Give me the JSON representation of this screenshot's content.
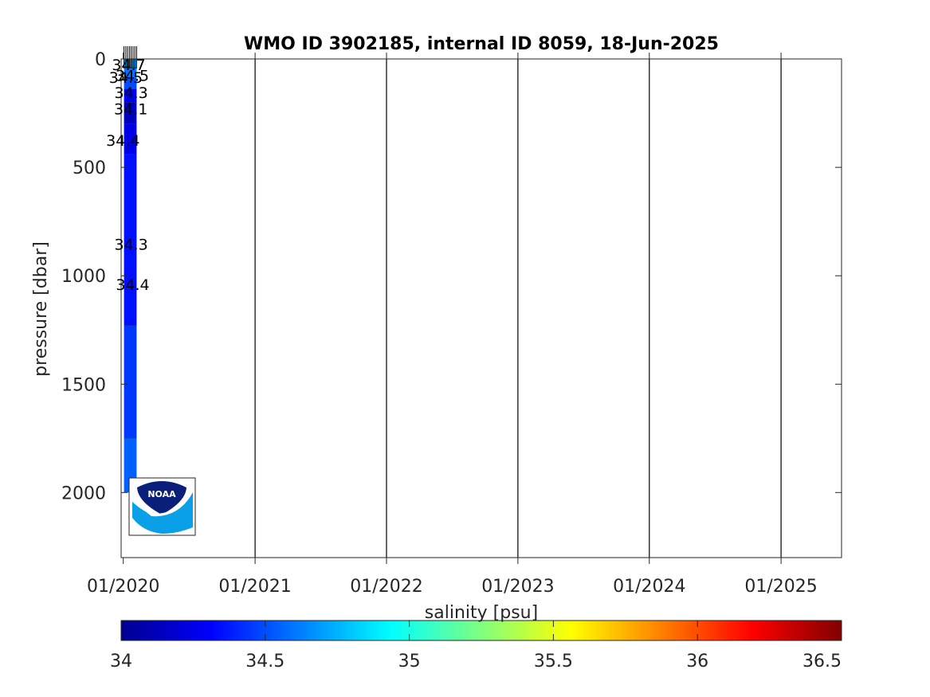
{
  "chart_data": {
    "type": "heatmap",
    "title": "WMO ID 3902185, internal ID 8059, 18-Jun-2025",
    "xlabel": "",
    "ylabel": "pressure [dbar]",
    "x_tick_labels": [
      "01/2020",
      "01/2021",
      "01/2022",
      "01/2023",
      "01/2024",
      "01/2025"
    ],
    "x_ticks": [
      "2020-01-01",
      "2021-01-01",
      "2022-01-01",
      "2023-01-01",
      "2024-01-01",
      "2025-01-01"
    ],
    "xlim": [
      "2019-12-26",
      "2025-06-18"
    ],
    "y_ticks": [
      0,
      500,
      1000,
      1500,
      2000
    ],
    "ylim": [
      0,
      2300
    ],
    "y_reversed": true,
    "grid": "vertical lines at yearly ticks",
    "profile_dates": [
      "2020-01-03",
      "2020-01-08",
      "2020-01-13",
      "2020-01-18",
      "2020-01-23",
      "2020-01-28",
      "2020-02-02",
      "2020-02-07"
    ],
    "salinity_bands": [
      {
        "p_top": 0,
        "p_bottom": 40,
        "salinity": 34.7
      },
      {
        "p_top": 40,
        "p_bottom": 90,
        "salinity": 34.6
      },
      {
        "p_top": 90,
        "p_bottom": 140,
        "salinity": 34.5
      },
      {
        "p_top": 140,
        "p_bottom": 200,
        "salinity": 34.3
      },
      {
        "p_top": 200,
        "p_bottom": 300,
        "salinity": 34.15
      },
      {
        "p_top": 300,
        "p_bottom": 440,
        "salinity": 34.25
      },
      {
        "p_top": 440,
        "p_bottom": 1230,
        "salinity": 34.35
      },
      {
        "p_top": 1230,
        "p_bottom": 1750,
        "salinity": 34.45
      },
      {
        "p_top": 1750,
        "p_bottom": 2000,
        "salinity": 34.55
      }
    ],
    "contour_labels": [
      {
        "text": "34.7",
        "date": "2020-01-16",
        "pressure": 25
      },
      {
        "text": "34.5",
        "date": "2020-01-08",
        "pressure": 85
      },
      {
        "text": "34.5",
        "date": "2020-01-26",
        "pressure": 75
      },
      {
        "text": "34.3",
        "date": "2020-01-23",
        "pressure": 155
      },
      {
        "text": "34.1",
        "date": "2020-01-22",
        "pressure": 230
      },
      {
        "text": "34.4",
        "date": "2019-12-31",
        "pressure": 375
      },
      {
        "text": "34.3",
        "date": "2020-01-23",
        "pressure": 855
      },
      {
        "text": "34.4",
        "date": "2020-01-27",
        "pressure": 1040
      }
    ],
    "colorbar": {
      "label": "salinity [psu]",
      "min": 34,
      "max": 36.5,
      "colormap": "jet",
      "tick_labels": [
        "34",
        "34.5",
        "35",
        "35.5",
        "36",
        "36.5"
      ]
    },
    "logo": {
      "name": "noaa-logo",
      "text": "NOAA"
    }
  }
}
